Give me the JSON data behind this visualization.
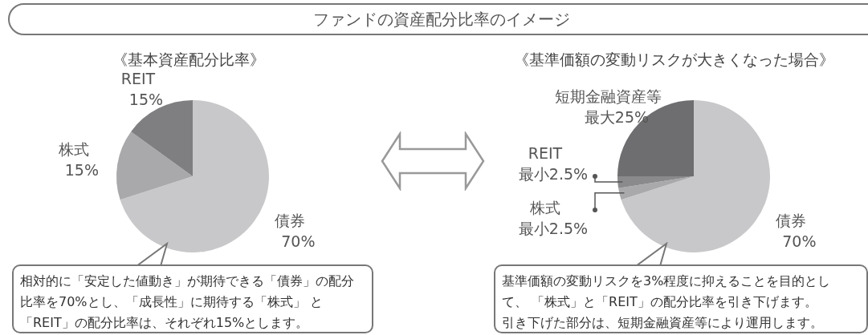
{
  "chart_data": [
    {
      "type": "pie",
      "title": "ファンドの資産配分比率のイメージ",
      "subtitle": "《基本資産配分比率》",
      "categories": [
        "債券",
        "株式",
        "REIT"
      ],
      "values": [
        70,
        15,
        15
      ],
      "value_labels": [
        "70%",
        "15%",
        "15%"
      ],
      "colors": [
        "#c8c8ca",
        "#a9a9ab",
        "#7f7f82"
      ],
      "legend": false,
      "annotations": [
        "相対的に「安定した値動き」が期待できる「債券」の配分",
        "比率を70%とし、「成長性」に期待する「株式」 と",
        "「REIT」の配分比率は、それぞれ15%とします。"
      ]
    },
    {
      "type": "pie",
      "subtitle": "《基準価額の変動リスクが大きくなった場合》",
      "categories": [
        "債券",
        "株式",
        "REIT",
        "短期金融資産等"
      ],
      "values": [
        70,
        2.5,
        2.5,
        25
      ],
      "value_labels": [
        "70%",
        "最小2.5%",
        "最小2.5%",
        "最大25%"
      ],
      "colors": [
        "#c8c8ca",
        "#a9a9ab",
        "#8a8a8d",
        "#6e6e71"
      ],
      "legend": false,
      "annotations": [
        "基準価額の変動リスクを3%程度に抑えることを目的とし",
        "て、 「株式」と「REIT」の配分比率を引き下げます。",
        "引き下げた部分は、短期金融資産等により運用します。"
      ]
    }
  ]
}
